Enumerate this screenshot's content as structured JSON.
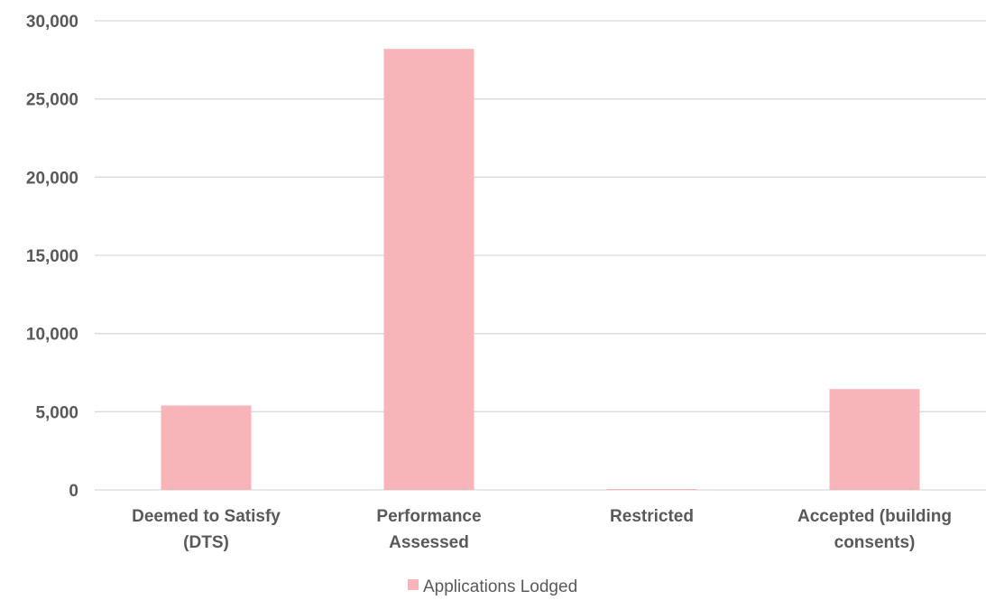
{
  "chart_data": {
    "type": "bar",
    "title": "",
    "xlabel": "",
    "ylabel": "",
    "categories": [
      [
        "Deemed to Satisfy",
        "(DTS)"
      ],
      [
        "Performance",
        "Assessed"
      ],
      [
        "Restricted"
      ],
      [
        "Accepted (building",
        "consents)"
      ]
    ],
    "series": [
      {
        "name": "Applications Lodged",
        "color": "#f8b5b9",
        "values": [
          5400,
          28200,
          60,
          6450
        ]
      }
    ],
    "ylim": [
      0,
      30000
    ],
    "yticks": [
      "0",
      "5,000",
      "10,000",
      "15,000",
      "20,000",
      "25,000",
      "30,000"
    ],
    "grid": true,
    "legend_position": "bottom"
  }
}
